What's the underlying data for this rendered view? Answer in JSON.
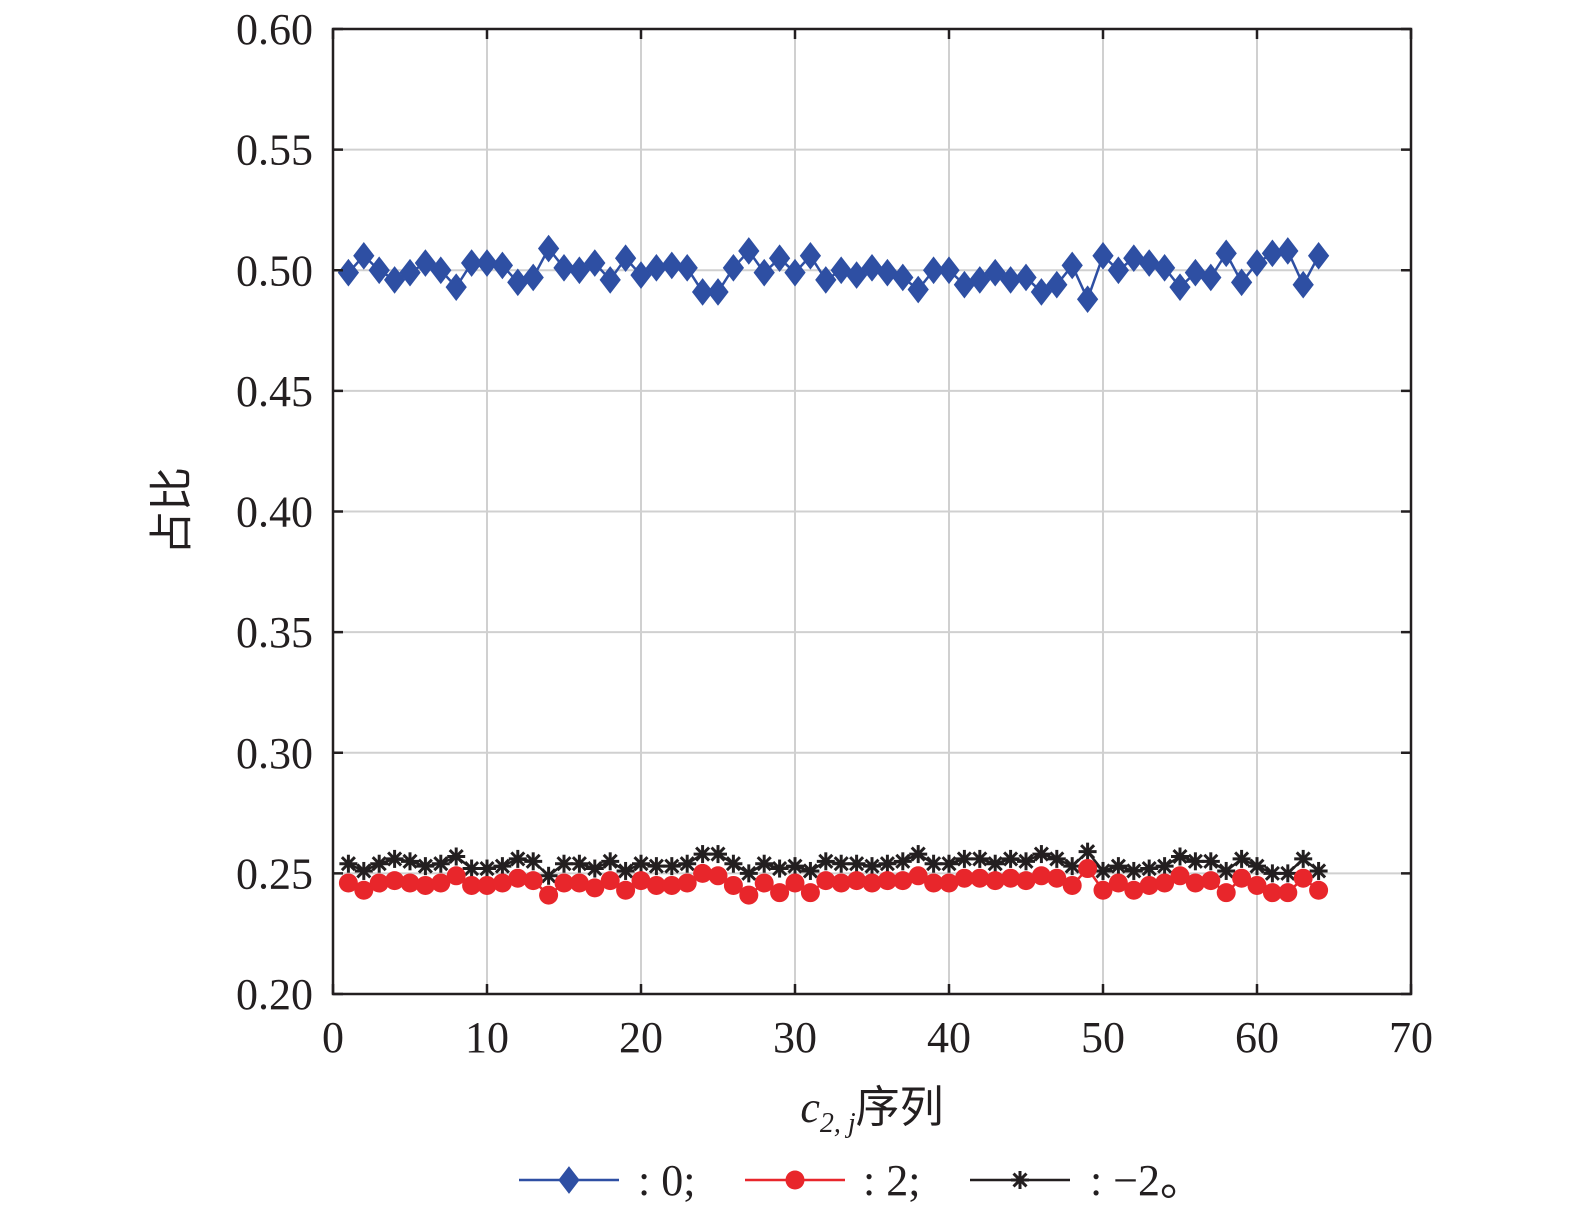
{
  "chart_data": {
    "type": "line",
    "xlabel_main": "c",
    "xlabel_sub": "2, j",
    "xlabel_suffix": "序列",
    "ylabel": "占比",
    "xlim": [
      0,
      70
    ],
    "ylim": [
      0.2,
      0.6
    ],
    "xticks": [
      0,
      10,
      20,
      30,
      40,
      50,
      60,
      70
    ],
    "yticks": [
      "0.20",
      "0.25",
      "0.30",
      "0.35",
      "0.40",
      "0.45",
      "0.50",
      "0.55",
      "0.60"
    ],
    "grid": true,
    "legend_placement": "bottom",
    "x": [
      1,
      2,
      3,
      4,
      5,
      6,
      7,
      8,
      9,
      10,
      11,
      12,
      13,
      14,
      15,
      16,
      17,
      18,
      19,
      20,
      21,
      22,
      23,
      24,
      25,
      26,
      27,
      28,
      29,
      30,
      31,
      32,
      33,
      34,
      35,
      36,
      37,
      38,
      39,
      40,
      41,
      42,
      43,
      44,
      45,
      46,
      47,
      48,
      49,
      50,
      51,
      52,
      53,
      54,
      55,
      56,
      57,
      58,
      59,
      60,
      61,
      62,
      63,
      64
    ],
    "series": [
      {
        "name": ": 0;",
        "color": "#2e4fa3",
        "marker": "diamond",
        "values": [
          0.499,
          0.506,
          0.5,
          0.496,
          0.499,
          0.503,
          0.5,
          0.493,
          0.503,
          0.503,
          0.502,
          0.495,
          0.497,
          0.509,
          0.501,
          0.5,
          0.503,
          0.496,
          0.505,
          0.498,
          0.501,
          0.502,
          0.501,
          0.491,
          0.491,
          0.501,
          0.508,
          0.499,
          0.505,
          0.499,
          0.506,
          0.496,
          0.5,
          0.498,
          0.501,
          0.499,
          0.497,
          0.492,
          0.5,
          0.5,
          0.494,
          0.496,
          0.499,
          0.496,
          0.497,
          0.491,
          0.494,
          0.502,
          0.488,
          0.506,
          0.5,
          0.505,
          0.503,
          0.501,
          0.493,
          0.499,
          0.497,
          0.507,
          0.495,
          0.503,
          0.507,
          0.508,
          0.494,
          0.506
        ]
      },
      {
        "name": ": 2;",
        "color": "#e8262b",
        "marker": "circle",
        "values": [
          0.246,
          0.243,
          0.246,
          0.247,
          0.246,
          0.245,
          0.246,
          0.249,
          0.245,
          0.245,
          0.246,
          0.248,
          0.247,
          0.241,
          0.246,
          0.246,
          0.244,
          0.247,
          0.243,
          0.247,
          0.245,
          0.245,
          0.246,
          0.25,
          0.249,
          0.245,
          0.241,
          0.246,
          0.242,
          0.246,
          0.242,
          0.247,
          0.246,
          0.247,
          0.246,
          0.247,
          0.247,
          0.249,
          0.246,
          0.246,
          0.248,
          0.248,
          0.247,
          0.248,
          0.247,
          0.249,
          0.248,
          0.245,
          0.252,
          0.243,
          0.246,
          0.243,
          0.245,
          0.246,
          0.249,
          0.246,
          0.247,
          0.242,
          0.248,
          0.245,
          0.242,
          0.242,
          0.248,
          0.243
        ]
      },
      {
        "name": ": −2。",
        "color": "#231f20",
        "marker": "star",
        "values": [
          0.254,
          0.251,
          0.254,
          0.256,
          0.255,
          0.253,
          0.254,
          0.257,
          0.252,
          0.252,
          0.253,
          0.256,
          0.255,
          0.249,
          0.254,
          0.254,
          0.252,
          0.255,
          0.251,
          0.254,
          0.253,
          0.253,
          0.254,
          0.258,
          0.258,
          0.254,
          0.25,
          0.254,
          0.252,
          0.253,
          0.251,
          0.255,
          0.254,
          0.254,
          0.253,
          0.254,
          0.255,
          0.258,
          0.254,
          0.254,
          0.256,
          0.256,
          0.254,
          0.256,
          0.255,
          0.258,
          0.256,
          0.253,
          0.259,
          0.251,
          0.253,
          0.251,
          0.252,
          0.253,
          0.257,
          0.255,
          0.255,
          0.251,
          0.256,
          0.253,
          0.25,
          0.25,
          0.256,
          0.251
        ]
      }
    ]
  }
}
